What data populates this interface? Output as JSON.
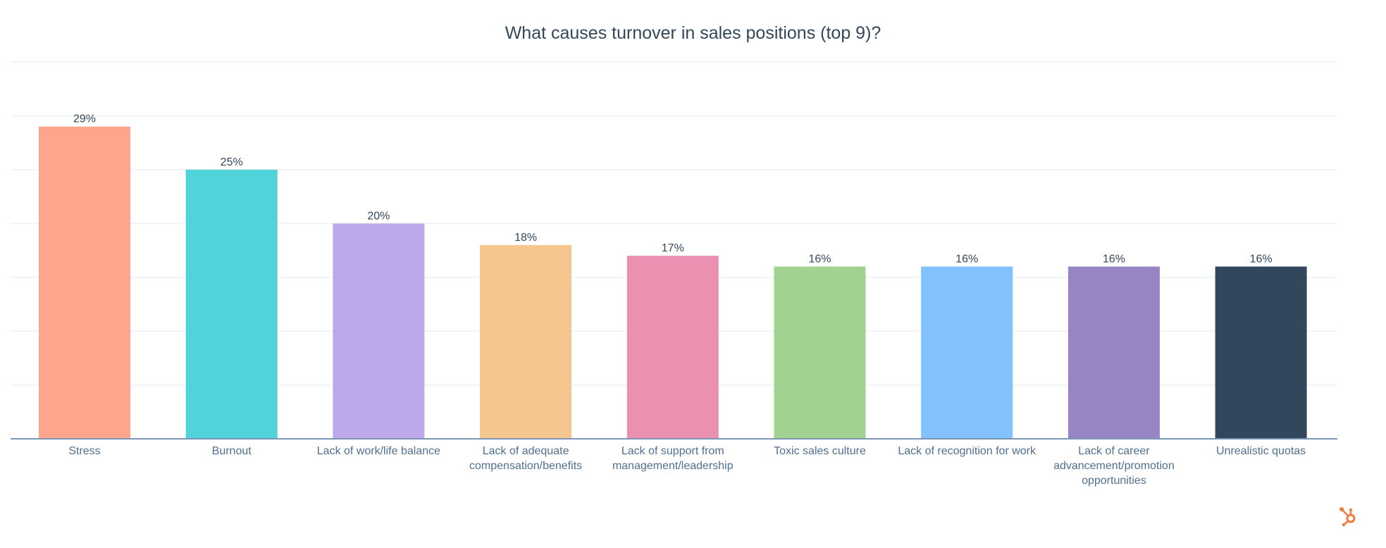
{
  "chart_data": {
    "type": "bar",
    "title": "What causes turnover in sales positions (top 9)?",
    "xlabel": "",
    "ylabel": "",
    "ylim": [
      0,
      35
    ],
    "grid": true,
    "categories": [
      "Stress",
      "Burnout",
      "Lack of work/life balance",
      "Lack of adequate compensation/benefits",
      "Lack of support from management/leadership",
      "Toxic sales culture",
      "Lack of recognition for work",
      "Lack of career advancement/promotion opportunities",
      "Unrealistic quotas"
    ],
    "values": [
      29,
      25,
      20,
      18,
      17,
      16,
      16,
      16,
      16
    ],
    "data_labels": [
      "29%",
      "25%",
      "20%",
      "18%",
      "17%",
      "16%",
      "16%",
      "16%",
      "16%"
    ],
    "colors": [
      "#fea58e",
      "#51d3d9",
      "#bda9ea",
      "#f5c78e",
      "#ea90b1",
      "#a2d28f",
      "#81c1fd",
      "#9784c2",
      "#32475b"
    ]
  },
  "logo": {
    "name": "hubspot-logo-icon",
    "color": "#f07b3f"
  }
}
